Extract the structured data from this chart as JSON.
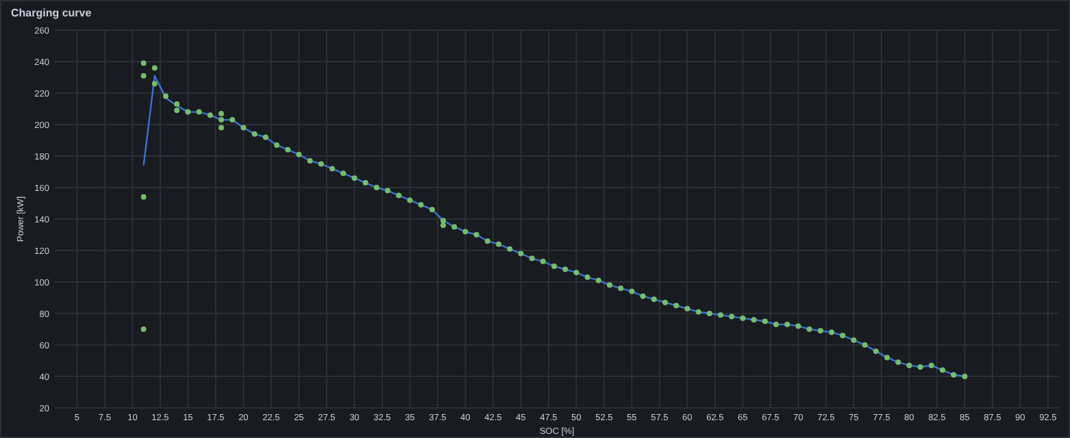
{
  "chart_data": {
    "type": "line",
    "title": "Charging curve",
    "xlabel": "SOC [%]",
    "ylabel": "Power [kW]",
    "xlim": [
      3,
      93.5
    ],
    "ylim": [
      20,
      260
    ],
    "xticks": [
      5,
      7.5,
      10,
      12.5,
      15,
      17.5,
      20,
      22.5,
      25,
      27.5,
      30,
      32.5,
      35,
      37.5,
      40,
      42.5,
      45,
      47.5,
      50,
      52.5,
      55,
      57.5,
      60,
      62.5,
      65,
      67.5,
      70,
      72.5,
      75,
      77.5,
      80,
      82.5,
      85,
      87.5,
      90,
      92.5
    ],
    "yticks": [
      20,
      40,
      60,
      80,
      100,
      120,
      140,
      160,
      180,
      200,
      220,
      240,
      260
    ],
    "grid": true,
    "series": [
      {
        "color": "#3d71d9",
        "marker": "none",
        "line_style": "solid",
        "x": [
          11,
          12,
          13,
          14,
          15,
          16,
          17,
          18,
          19,
          20,
          21,
          22,
          23,
          24,
          25,
          26,
          27,
          28,
          29,
          30,
          31,
          32,
          33,
          34,
          35,
          36,
          37,
          38,
          39,
          40,
          41,
          42,
          43,
          44,
          45,
          46,
          47,
          48,
          49,
          50,
          51,
          52,
          53,
          54,
          55,
          56,
          57,
          58,
          59,
          60,
          61,
          62,
          63,
          64,
          65,
          66,
          67,
          68,
          69,
          70,
          71,
          72,
          73,
          74,
          75,
          76,
          77,
          78,
          79,
          80,
          81,
          82,
          83,
          84,
          85
        ],
        "values": [
          174,
          231,
          217,
          212,
          208,
          208,
          206,
          203,
          203,
          198,
          194,
          192,
          187,
          184,
          181,
          177,
          175,
          172,
          169,
          166,
          163,
          160,
          158,
          155,
          152,
          149,
          146,
          139,
          135,
          132,
          130,
          126,
          124,
          121,
          118,
          115,
          113,
          110,
          108,
          106,
          103,
          101,
          98,
          96,
          94,
          91,
          89,
          87,
          85,
          83,
          81,
          80,
          79,
          78,
          77,
          76,
          75,
          73,
          73,
          72,
          70,
          69,
          68,
          66,
          63,
          60,
          56,
          52,
          49,
          47,
          46,
          47,
          44,
          41,
          40
        ]
      },
      {
        "type": "scatter",
        "color": "#73bf69",
        "marker": "circle",
        "x": [
          11,
          11,
          11,
          11,
          12,
          12,
          13,
          14,
          14,
          15,
          16,
          17,
          18,
          18,
          18,
          19,
          20,
          21,
          22,
          23,
          24,
          25,
          26,
          27,
          28,
          29,
          30,
          31,
          32,
          33,
          34,
          35,
          36,
          37,
          38,
          38,
          39,
          40,
          41,
          42,
          43,
          44,
          45,
          46,
          47,
          48,
          49,
          50,
          51,
          52,
          53,
          54,
          55,
          56,
          57,
          58,
          59,
          60,
          61,
          62,
          63,
          64,
          65,
          66,
          67,
          68,
          69,
          70,
          71,
          72,
          73,
          74,
          75,
          76,
          77,
          78,
          79,
          80,
          81,
          82,
          83,
          84,
          85
        ],
        "values": [
          239,
          231,
          154,
          70,
          236,
          226,
          218,
          213,
          209,
          208,
          208,
          206,
          207,
          203,
          198,
          203,
          198,
          194,
          192,
          187,
          184,
          181,
          177,
          175,
          172,
          169,
          166,
          163,
          160,
          158,
          155,
          152,
          149,
          146,
          139,
          136,
          135,
          132,
          130,
          126,
          124,
          121,
          118,
          115,
          113,
          110,
          108,
          106,
          103,
          101,
          98,
          96,
          94,
          91,
          89,
          87,
          85,
          83,
          81,
          80,
          79,
          78,
          77,
          76,
          75,
          73,
          73,
          72,
          70,
          69,
          68,
          66,
          63,
          60,
          56,
          52,
          49,
          47,
          46,
          47,
          44,
          41,
          40
        ]
      }
    ]
  }
}
